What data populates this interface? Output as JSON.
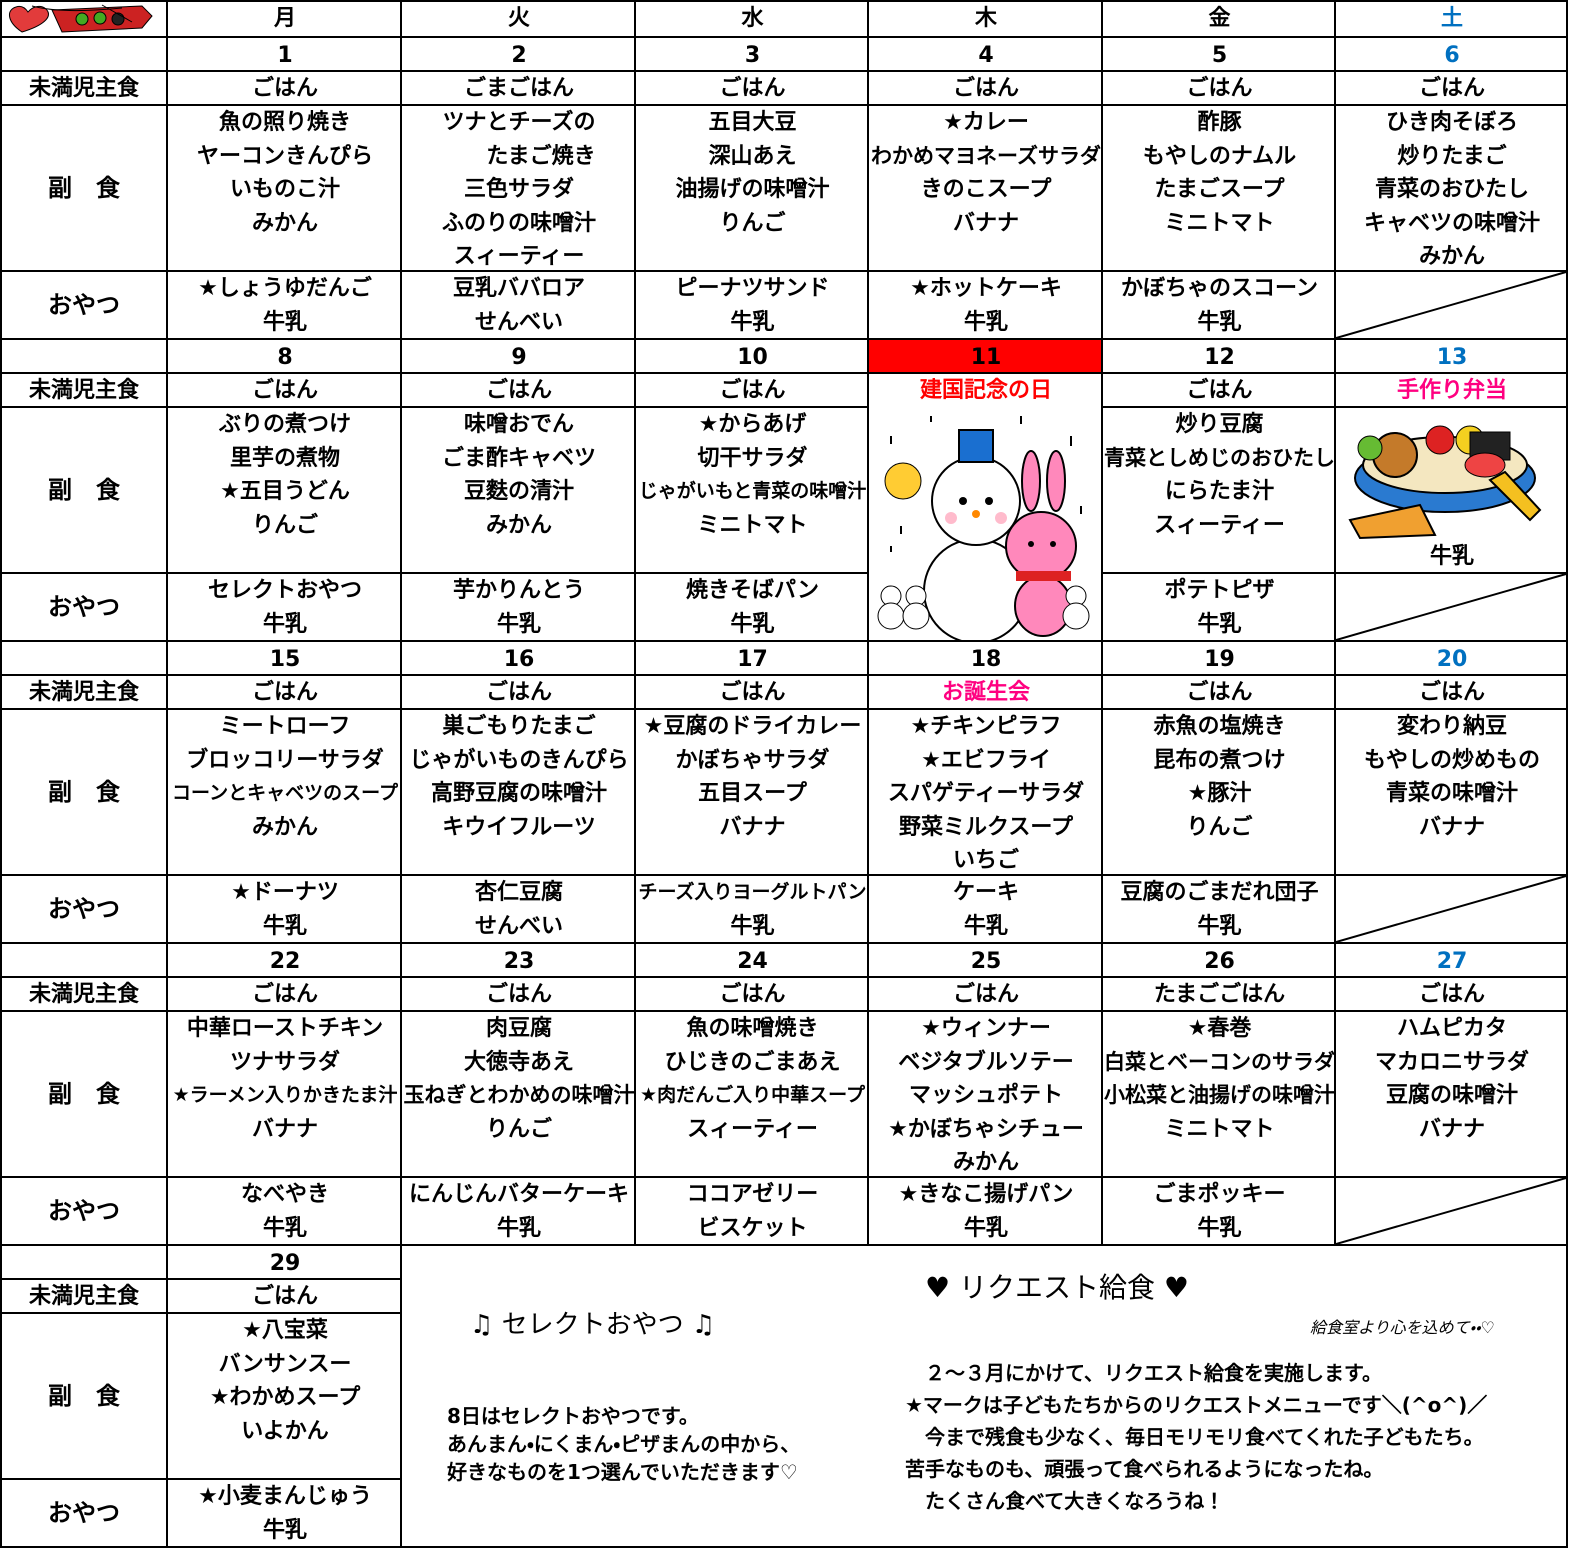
{
  "header": {
    "days": [
      "月",
      "火",
      "水",
      "木",
      "金",
      "土"
    ]
  },
  "row_labels": {
    "staple": "未満児主食",
    "side": "副　食",
    "snack": "おやつ"
  },
  "weeks": [
    {
      "dates": [
        1,
        2,
        3,
        4,
        5,
        6
      ],
      "staple": [
        "ごはん",
        "ごまごはん",
        "ごはん",
        "ごはん",
        "ごはん",
        "ごはん"
      ],
      "side": [
        [
          "魚の照り焼き",
          "ヤーコンきんぴら",
          "いものこ汁",
          "みかん"
        ],
        [
          "ツナとチーズの",
          "　　たまご焼き",
          "三色サラダ",
          "ふのりの味噌汁",
          "スィーティー"
        ],
        [
          "五目大豆",
          "深山あえ",
          "油揚げの味噌汁",
          "りんご"
        ],
        [
          "★カレー",
          "わかめマヨネーズサラダ",
          "きのこスープ",
          "バナナ"
        ],
        [
          "酢豚",
          "もやしのナムル",
          "たまごスープ",
          "ミニトマト"
        ],
        [
          "ひき肉そぼろ",
          "炒りたまご",
          "青菜のおひたし",
          "キャベツの味噌汁",
          "みかん"
        ]
      ],
      "snack": [
        [
          "★しょうゆだんご",
          "牛乳"
        ],
        [
          "豆乳ババロア",
          "せんべい"
        ],
        [
          "ピーナツサンド",
          "牛乳"
        ],
        [
          "★ホットケーキ",
          "牛乳"
        ],
        [
          "かぼちゃのスコーン",
          "牛乳"
        ],
        null
      ]
    },
    {
      "dates": [
        8,
        9,
        10,
        11,
        12,
        13
      ],
      "staple": [
        "ごはん",
        "ごはん",
        "ごはん",
        "建国記念の日",
        "ごはん",
        "手作り弁当"
      ],
      "side": [
        [
          "ぶりの煮つけ",
          "里芋の煮物",
          "★五目うどん",
          "りんご"
        ],
        [
          "味噌おでん",
          "ごま酢キャベツ",
          "豆麩の清汁",
          "みかん"
        ],
        [
          "★からあげ",
          "切干サラダ",
          "じゃがいもと青菜の味噌汁",
          "ミニトマト"
        ],
        [],
        [
          "炒り豆腐",
          "青菜としめじのおひたし",
          "にらたま汁",
          "スィーティー"
        ],
        [
          "牛乳"
        ]
      ],
      "snack": [
        [
          "セレクトおやつ",
          "牛乳"
        ],
        [
          "芋かりんとう",
          "牛乳"
        ],
        [
          "焼きそばパン",
          "牛乳"
        ],
        null,
        [
          "ポテトピザ",
          "牛乳"
        ],
        null
      ]
    },
    {
      "dates": [
        15,
        16,
        17,
        18,
        19,
        20
      ],
      "staple": [
        "ごはん",
        "ごはん",
        "ごはん",
        "お誕生会",
        "ごはん",
        "ごはん"
      ],
      "side": [
        [
          "ミートローフ",
          "ブロッコリーサラダ",
          "コーンとキャベツのスープ",
          "みかん"
        ],
        [
          "巣ごもりたまご",
          "じゃがいものきんぴら",
          "高野豆腐の味噌汁",
          "キウイフルーツ"
        ],
        [
          "★豆腐のドライカレー",
          "かぼちゃサラダ",
          "五目スープ",
          "バナナ"
        ],
        [
          "★チキンピラフ",
          "★エビフライ",
          "スパゲティーサラダ",
          "野菜ミルクスープ",
          "いちご"
        ],
        [
          "赤魚の塩焼き",
          "昆布の煮つけ",
          "★豚汁",
          "りんご"
        ],
        [
          "変わり納豆",
          "もやしの炒めもの",
          "青菜の味噌汁",
          "バナナ"
        ]
      ],
      "snack": [
        [
          "★ドーナツ",
          "牛乳"
        ],
        [
          "杏仁豆腐",
          "せんべい"
        ],
        [
          "チーズ入りヨーグルトパン",
          "牛乳"
        ],
        [
          "ケーキ",
          "牛乳"
        ],
        [
          "豆腐のごまだれ団子",
          "牛乳"
        ],
        null
      ]
    },
    {
      "dates": [
        22,
        23,
        24,
        25,
        26,
        27
      ],
      "staple": [
        "ごはん",
        "ごはん",
        "ごはん",
        "ごはん",
        "たまごごはん",
        "ごはん"
      ],
      "side": [
        [
          "中華ローストチキン",
          "ツナサラダ",
          "★ラーメン入りかきたま汁",
          "バナナ"
        ],
        [
          "肉豆腐",
          "大徳寺あえ",
          "玉ねぎとわかめの味噌汁",
          "りんご"
        ],
        [
          "魚の味噌焼き",
          "ひじきのごまあえ",
          "★肉だんご入り中華スープ",
          "スィーティー"
        ],
        [
          "★ウィンナー",
          "ベジタブルソテー",
          "マッシュポテト",
          "★かぼちゃシチュー",
          "みかん"
        ],
        [
          "★春巻",
          "白菜とベーコンのサラダ",
          "小松菜と油揚げの味噌汁",
          "ミニトマト"
        ],
        [
          "ハムピカタ",
          "マカロニサラダ",
          "豆腐の味噌汁",
          "バナナ"
        ]
      ],
      "snack": [
        [
          "なべやき",
          "牛乳"
        ],
        [
          "にんじんバターケーキ",
          "牛乳"
        ],
        [
          "ココアゼリー",
          "ビスケット"
        ],
        [
          "★きなこ揚げパン",
          "牛乳"
        ],
        [
          "ごまポッキー",
          "牛乳"
        ],
        null
      ]
    },
    {
      "dates": [
        29
      ],
      "staple": [
        "ごはん"
      ],
      "side": [
        [
          "★八宝菜",
          "バンサンスー",
          "★わかめスープ",
          "いよかん"
        ]
      ],
      "snack": [
        [
          "★小麦まんじゅう",
          "牛乳"
        ]
      ]
    }
  ],
  "notes": {
    "select": {
      "title": "♫ セレクトおやつ ♫",
      "lines": [
        "8日はセレクトおやつです。",
        "あんまん・にくまん・ピザまんの中から、",
        "好きなものを1つ選んでいただきます♡"
      ]
    },
    "request": {
      "title": "♥ リクエスト給食 ♥",
      "signature": "給食室より心を込めて・・♡",
      "lines": [
        "　２～３月にかけて、リクエスト給食を実施します。",
        "★マークは子どもたちからのリクエストメニューです＼(^o^)／",
        "　今まで残食も少なく、毎日モリモリ食べてくれた子どもたち。",
        "苦手なものも、頑張って食べられるようになったね。",
        "　たくさん食べて大きくなろうね！"
      ]
    }
  }
}
